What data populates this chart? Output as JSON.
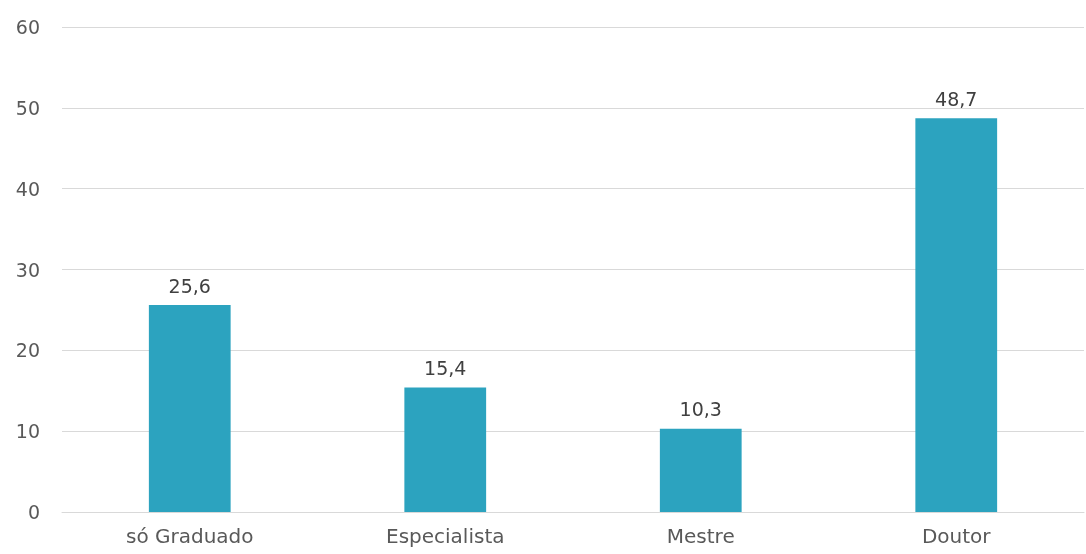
{
  "chart_data": {
    "type": "bar",
    "categories": [
      "só Graduado",
      "Especialista",
      "Mestre",
      "Doutor"
    ],
    "values": [
      25.6,
      15.4,
      10.3,
      48.7
    ],
    "color": "#2ca3bf",
    "value_labels": [
      "25,6",
      "15,4",
      "10,3",
      "48,7"
    ],
    "ylim": [
      0,
      60
    ],
    "yticks": [
      0,
      10,
      20,
      30,
      40,
      50,
      60
    ],
    "grid": "y"
  }
}
